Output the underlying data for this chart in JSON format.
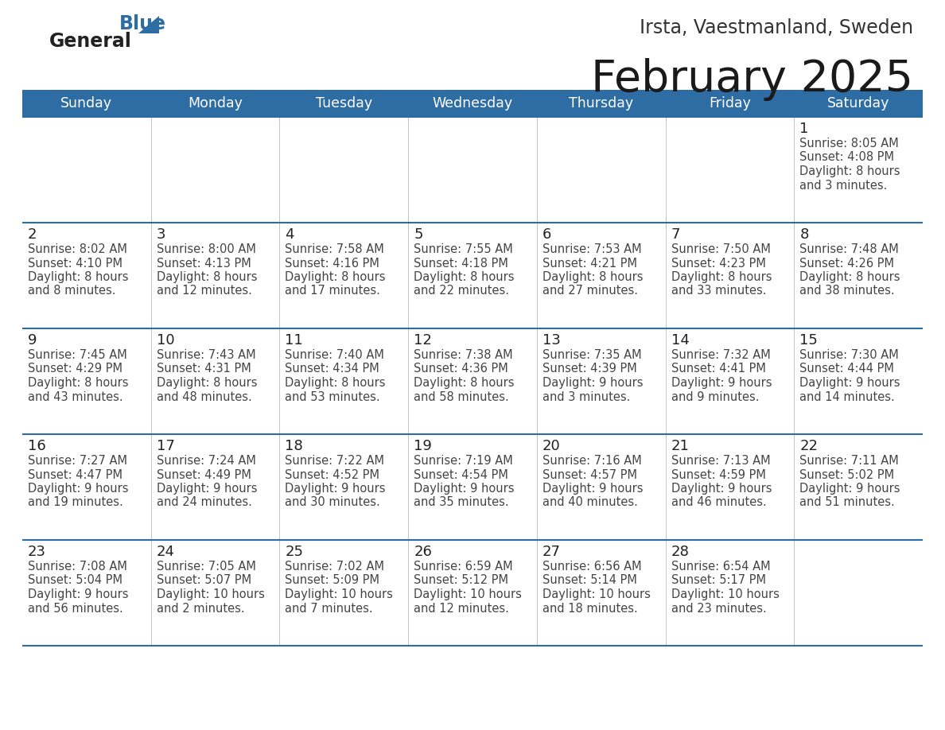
{
  "title": "February 2025",
  "subtitle": "Irsta, Vaestmanland, Sweden",
  "header_color": "#2E6DA4",
  "header_text_color": "#FFFFFF",
  "days_of_week": [
    "Sunday",
    "Monday",
    "Tuesday",
    "Wednesday",
    "Thursday",
    "Friday",
    "Saturday"
  ],
  "line_color": "#2E6DA4",
  "calendar_data": [
    [
      {
        "day": null
      },
      {
        "day": null
      },
      {
        "day": null
      },
      {
        "day": null
      },
      {
        "day": null
      },
      {
        "day": null
      },
      {
        "day": 1,
        "sunrise": "8:05 AM",
        "sunset": "4:08 PM",
        "daylight_h": "8 hours",
        "daylight_m": "and 3 minutes."
      }
    ],
    [
      {
        "day": 2,
        "sunrise": "8:02 AM",
        "sunset": "4:10 PM",
        "daylight_h": "8 hours",
        "daylight_m": "and 8 minutes."
      },
      {
        "day": 3,
        "sunrise": "8:00 AM",
        "sunset": "4:13 PM",
        "daylight_h": "8 hours",
        "daylight_m": "and 12 minutes."
      },
      {
        "day": 4,
        "sunrise": "7:58 AM",
        "sunset": "4:16 PM",
        "daylight_h": "8 hours",
        "daylight_m": "and 17 minutes."
      },
      {
        "day": 5,
        "sunrise": "7:55 AM",
        "sunset": "4:18 PM",
        "daylight_h": "8 hours",
        "daylight_m": "and 22 minutes."
      },
      {
        "day": 6,
        "sunrise": "7:53 AM",
        "sunset": "4:21 PM",
        "daylight_h": "8 hours",
        "daylight_m": "and 27 minutes."
      },
      {
        "day": 7,
        "sunrise": "7:50 AM",
        "sunset": "4:23 PM",
        "daylight_h": "8 hours",
        "daylight_m": "and 33 minutes."
      },
      {
        "day": 8,
        "sunrise": "7:48 AM",
        "sunset": "4:26 PM",
        "daylight_h": "8 hours",
        "daylight_m": "and 38 minutes."
      }
    ],
    [
      {
        "day": 9,
        "sunrise": "7:45 AM",
        "sunset": "4:29 PM",
        "daylight_h": "8 hours",
        "daylight_m": "and 43 minutes."
      },
      {
        "day": 10,
        "sunrise": "7:43 AM",
        "sunset": "4:31 PM",
        "daylight_h": "8 hours",
        "daylight_m": "and 48 minutes."
      },
      {
        "day": 11,
        "sunrise": "7:40 AM",
        "sunset": "4:34 PM",
        "daylight_h": "8 hours",
        "daylight_m": "and 53 minutes."
      },
      {
        "day": 12,
        "sunrise": "7:38 AM",
        "sunset": "4:36 PM",
        "daylight_h": "8 hours",
        "daylight_m": "and 58 minutes."
      },
      {
        "day": 13,
        "sunrise": "7:35 AM",
        "sunset": "4:39 PM",
        "daylight_h": "9 hours",
        "daylight_m": "and 3 minutes."
      },
      {
        "day": 14,
        "sunrise": "7:32 AM",
        "sunset": "4:41 PM",
        "daylight_h": "9 hours",
        "daylight_m": "and 9 minutes."
      },
      {
        "day": 15,
        "sunrise": "7:30 AM",
        "sunset": "4:44 PM",
        "daylight_h": "9 hours",
        "daylight_m": "and 14 minutes."
      }
    ],
    [
      {
        "day": 16,
        "sunrise": "7:27 AM",
        "sunset": "4:47 PM",
        "daylight_h": "9 hours",
        "daylight_m": "and 19 minutes."
      },
      {
        "day": 17,
        "sunrise": "7:24 AM",
        "sunset": "4:49 PM",
        "daylight_h": "9 hours",
        "daylight_m": "and 24 minutes."
      },
      {
        "day": 18,
        "sunrise": "7:22 AM",
        "sunset": "4:52 PM",
        "daylight_h": "9 hours",
        "daylight_m": "and 30 minutes."
      },
      {
        "day": 19,
        "sunrise": "7:19 AM",
        "sunset": "4:54 PM",
        "daylight_h": "9 hours",
        "daylight_m": "and 35 minutes."
      },
      {
        "day": 20,
        "sunrise": "7:16 AM",
        "sunset": "4:57 PM",
        "daylight_h": "9 hours",
        "daylight_m": "and 40 minutes."
      },
      {
        "day": 21,
        "sunrise": "7:13 AM",
        "sunset": "4:59 PM",
        "daylight_h": "9 hours",
        "daylight_m": "and 46 minutes."
      },
      {
        "day": 22,
        "sunrise": "7:11 AM",
        "sunset": "5:02 PM",
        "daylight_h": "9 hours",
        "daylight_m": "and 51 minutes."
      }
    ],
    [
      {
        "day": 23,
        "sunrise": "7:08 AM",
        "sunset": "5:04 PM",
        "daylight_h": "9 hours",
        "daylight_m": "and 56 minutes."
      },
      {
        "day": 24,
        "sunrise": "7:05 AM",
        "sunset": "5:07 PM",
        "daylight_h": "10 hours",
        "daylight_m": "and 2 minutes."
      },
      {
        "day": 25,
        "sunrise": "7:02 AM",
        "sunset": "5:09 PM",
        "daylight_h": "10 hours",
        "daylight_m": "and 7 minutes."
      },
      {
        "day": 26,
        "sunrise": "6:59 AM",
        "sunset": "5:12 PM",
        "daylight_h": "10 hours",
        "daylight_m": "and 12 minutes."
      },
      {
        "day": 27,
        "sunrise": "6:56 AM",
        "sunset": "5:14 PM",
        "daylight_h": "10 hours",
        "daylight_m": "and 18 minutes."
      },
      {
        "day": 28,
        "sunrise": "6:54 AM",
        "sunset": "5:17 PM",
        "daylight_h": "10 hours",
        "daylight_m": "and 23 minutes."
      },
      {
        "day": null
      }
    ]
  ]
}
